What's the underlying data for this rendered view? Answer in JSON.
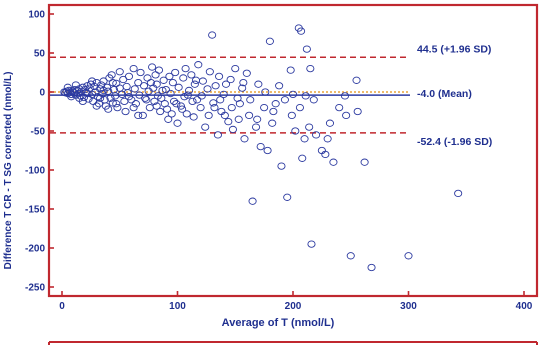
{
  "chart_data": {
    "type": "scatter",
    "xlabel": "Average of T (nmol/L)",
    "ylabel": "Difference T CR - T SG corrected (nmol/L)",
    "xlim": [
      0,
      400
    ],
    "ylim": [
      -250,
      100
    ],
    "x_ticks": [
      "0",
      "100",
      "200",
      "300",
      "400"
    ],
    "y_ticks": [
      "100",
      "50",
      "0",
      "-50",
      "-100",
      "-150",
      "-200",
      "-250"
    ],
    "grid": false,
    "colors": {
      "frame": "#c0282f",
      "points": "#2c3aa0",
      "mean_line": "#2c3aa0",
      "sd_lines": "#c0282f",
      "zero_line": "#e8a33a",
      "text": "#1f2f8f"
    },
    "reference_lines": [
      {
        "role": "upper_loa",
        "y": 44.5,
        "label": "44.5 (+1.96 SD)",
        "style": "dashed"
      },
      {
        "role": "mean",
        "y": -4.0,
        "label": "-4.0 (Mean)",
        "style": "solid"
      },
      {
        "role": "lower_loa",
        "y": -52.4,
        "label": "-52.4 (-1.96 SD)",
        "style": "dashed"
      }
    ],
    "points": [
      [
        2,
        0
      ],
      [
        3,
        -1
      ],
      [
        4,
        1
      ],
      [
        5,
        -2
      ],
      [
        6,
        2
      ],
      [
        7,
        0
      ],
      [
        8,
        -3
      ],
      [
        9,
        1
      ],
      [
        10,
        -1
      ],
      [
        11,
        3
      ],
      [
        12,
        -4
      ],
      [
        13,
        2
      ],
      [
        14,
        -2
      ],
      [
        15,
        4
      ],
      [
        16,
        -5
      ],
      [
        17,
        1
      ],
      [
        18,
        6
      ],
      [
        19,
        -7
      ],
      [
        20,
        3
      ],
      [
        21,
        -1
      ],
      [
        22,
        8
      ],
      [
        23,
        -9
      ],
      [
        24,
        5
      ],
      [
        25,
        10
      ],
      [
        26,
        -3
      ],
      [
        27,
        -12
      ],
      [
        28,
        7
      ],
      [
        29,
        0
      ],
      [
        30,
        12
      ],
      [
        31,
        -6
      ],
      [
        32,
        -15
      ],
      [
        33,
        4
      ],
      [
        34,
        9
      ],
      [
        35,
        -2
      ],
      [
        36,
        14
      ],
      [
        37,
        -10
      ],
      [
        38,
        -18
      ],
      [
        39,
        6
      ],
      [
        40,
        1
      ],
      [
        41,
        18
      ],
      [
        42,
        -8
      ],
      [
        43,
        22
      ],
      [
        44,
        -14
      ],
      [
        45,
        3
      ],
      [
        46,
        -5
      ],
      [
        47,
        11
      ],
      [
        48,
        -20
      ],
      [
        50,
        26
      ],
      [
        52,
        -3
      ],
      [
        53,
        16
      ],
      [
        55,
        -25
      ],
      [
        56,
        7
      ],
      [
        57,
        -1
      ],
      [
        58,
        20
      ],
      [
        60,
        -10
      ],
      [
        62,
        30
      ],
      [
        63,
        4
      ],
      [
        64,
        -15
      ],
      [
        66,
        12
      ],
      [
        67,
        -4
      ],
      [
        68,
        25
      ],
      [
        70,
        -30
      ],
      [
        71,
        8
      ],
      [
        72,
        -8
      ],
      [
        74,
        18
      ],
      [
        75,
        1
      ],
      [
        76,
        -20
      ],
      [
        78,
        32
      ],
      [
        79,
        5
      ],
      [
        80,
        -12
      ],
      [
        81,
        22
      ],
      [
        82,
        10
      ],
      [
        83,
        -5
      ],
      [
        84,
        28
      ],
      [
        85,
        -25
      ],
      [
        86,
        -8
      ],
      [
        88,
        15
      ],
      [
        89,
        -15
      ],
      [
        90,
        3
      ],
      [
        92,
        -35
      ],
      [
        93,
        20
      ],
      [
        94,
        -2
      ],
      [
        96,
        12
      ],
      [
        97,
        -12
      ],
      [
        98,
        25
      ],
      [
        100,
        -40
      ],
      [
        101,
        6
      ],
      [
        103,
        -18
      ],
      [
        105,
        18
      ],
      [
        106,
        -6
      ],
      [
        107,
        30
      ],
      [
        108,
        -28
      ],
      [
        110,
        2
      ],
      [
        112,
        22
      ],
      [
        114,
        -32
      ],
      [
        115,
        10
      ],
      [
        117,
        -10
      ],
      [
        118,
        35
      ],
      [
        120,
        -20
      ],
      [
        122,
        14
      ],
      [
        124,
        -45
      ],
      [
        126,
        4
      ],
      [
        128,
        26
      ],
      [
        130,
        73
      ],
      [
        131,
        -14
      ],
      [
        133,
        8
      ],
      [
        135,
        -55
      ],
      [
        136,
        20
      ],
      [
        138,
        -25
      ],
      [
        140,
        -3
      ],
      [
        142,
        10
      ],
      [
        144,
        -38
      ],
      [
        146,
        16
      ],
      [
        148,
        -48
      ],
      [
        150,
        30
      ],
      [
        152,
        -8
      ],
      [
        154,
        -15
      ],
      [
        156,
        5
      ],
      [
        158,
        -60
      ],
      [
        160,
        24
      ],
      [
        162,
        -30
      ],
      [
        165,
        -140
      ],
      [
        168,
        -45
      ],
      [
        170,
        10
      ],
      [
        172,
        -70
      ],
      [
        175,
        -20
      ],
      [
        178,
        -75
      ],
      [
        180,
        65
      ],
      [
        182,
        -40
      ],
      [
        185,
        -15
      ],
      [
        190,
        -95
      ],
      [
        195,
        -135
      ],
      [
        198,
        28
      ],
      [
        200,
        -3
      ],
      [
        202,
        -50
      ],
      [
        205,
        82
      ],
      [
        207,
        78
      ],
      [
        208,
        -85
      ],
      [
        210,
        -60
      ],
      [
        212,
        55
      ],
      [
        214,
        -45
      ],
      [
        215,
        30
      ],
      [
        216,
        -195
      ],
      [
        218,
        -10
      ],
      [
        225,
        -75
      ],
      [
        228,
        -80
      ],
      [
        232,
        -40
      ],
      [
        235,
        -90
      ],
      [
        240,
        -20
      ],
      [
        246,
        -30
      ],
      [
        250,
        -210
      ],
      [
        255,
        15
      ],
      [
        256,
        -25
      ],
      [
        262,
        -90
      ],
      [
        268,
        -225
      ],
      [
        300,
        -210
      ],
      [
        343,
        -130
      ],
      [
        5,
        6
      ],
      [
        8,
        -6
      ],
      [
        12,
        9
      ],
      [
        15,
        -8
      ],
      [
        18,
        -12
      ],
      [
        22,
        -2
      ],
      [
        26,
        14
      ],
      [
        30,
        -18
      ],
      [
        33,
        -8
      ],
      [
        36,
        2
      ],
      [
        40,
        -22
      ],
      [
        44,
        12
      ],
      [
        47,
        -15
      ],
      [
        50,
        5
      ],
      [
        54,
        -12
      ],
      [
        58,
        -6
      ],
      [
        62,
        -20
      ],
      [
        66,
        -30
      ],
      [
        73,
        -10
      ],
      [
        77,
        12
      ],
      [
        82,
        -18
      ],
      [
        87,
        2
      ],
      [
        91,
        -22
      ],
      [
        95,
        -28
      ],
      [
        99,
        -15
      ],
      [
        104,
        -22
      ],
      [
        109,
        -4
      ],
      [
        113,
        -12
      ],
      [
        116,
        15
      ],
      [
        121,
        -5
      ],
      [
        127,
        -30
      ],
      [
        132,
        -20
      ],
      [
        137,
        -10
      ],
      [
        141,
        -30
      ],
      [
        147,
        -20
      ],
      [
        153,
        -35
      ],
      [
        157,
        12
      ],
      [
        163,
        -10
      ],
      [
        169,
        -35
      ],
      [
        176,
        0
      ],
      [
        183,
        -25
      ],
      [
        188,
        8
      ],
      [
        193,
        -10
      ],
      [
        199,
        -30
      ],
      [
        206,
        -20
      ],
      [
        211,
        -5
      ],
      [
        220,
        -55
      ],
      [
        230,
        -60
      ],
      [
        245,
        -5
      ]
    ]
  }
}
